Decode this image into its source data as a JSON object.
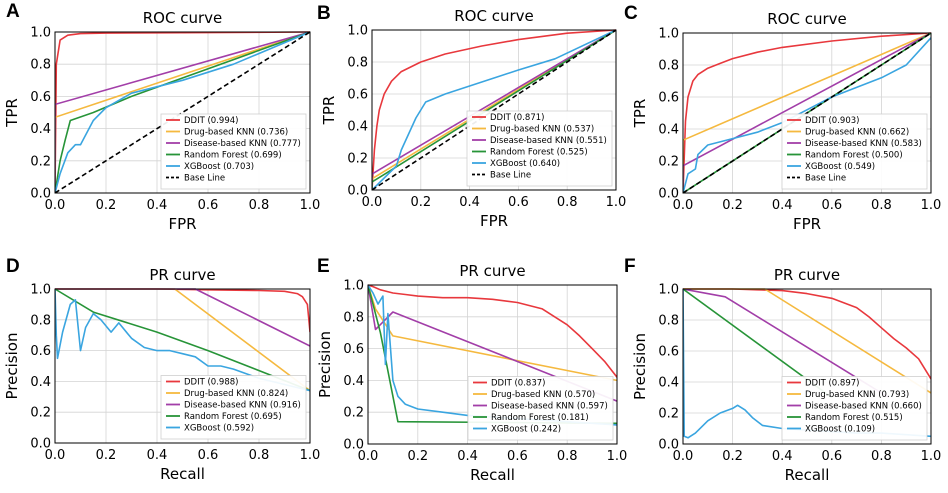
{
  "chart_data": [
    {
      "panel": "A",
      "type": "line",
      "title": "ROC curve",
      "xlabel": "FPR",
      "ylabel": "TPR",
      "xlim": [
        0,
        1
      ],
      "ylim": [
        0,
        1
      ],
      "grid": true,
      "legend_position": "bottom-right",
      "xticks": [
        "0.0",
        "0.2",
        "0.4",
        "0.6",
        "0.8",
        "1.0"
      ],
      "yticks": [
        "0.0",
        "0.2",
        "0.4",
        "0.6",
        "0.8",
        "1.0"
      ],
      "series": [
        {
          "name": "DDIT",
          "legend": "DDIT (0.994)",
          "color": "#e8383d",
          "dash": "",
          "x": [
            0,
            0.005,
            0.02,
            0.05,
            0.1,
            0.2,
            0.4,
            0.7,
            1.0
          ],
          "y": [
            0,
            0.8,
            0.95,
            0.98,
            0.99,
            0.993,
            0.995,
            0.997,
            1.0
          ]
        },
        {
          "name": "Drug-based KNN",
          "legend": "Drug-based KNN (0.736)",
          "color": "#f5b93f",
          "dash": "",
          "x": [
            0,
            0,
            1.0
          ],
          "y": [
            0,
            0.47,
            1.0
          ]
        },
        {
          "name": "Disease-based KNN",
          "legend": "Disease-based KNN (0.777)",
          "color": "#a23ea8",
          "dash": "",
          "x": [
            0,
            0,
            1.0
          ],
          "y": [
            0,
            0.55,
            1.0
          ]
        },
        {
          "name": "Random Forest",
          "legend": "Random Forest (0.699)",
          "color": "#279438",
          "dash": "",
          "x": [
            0,
            0.02,
            0.04,
            0.06,
            0.15,
            0.3,
            1.0
          ],
          "y": [
            0,
            0.2,
            0.33,
            0.45,
            0.5,
            0.6,
            1.0
          ]
        },
        {
          "name": "XGBoost",
          "legend": "XGBoost (0.703)",
          "color": "#3aa5e0",
          "dash": "",
          "x": [
            0,
            0.02,
            0.05,
            0.08,
            0.1,
            0.15,
            0.2,
            0.3,
            0.5,
            0.7,
            1.0
          ],
          "y": [
            0,
            0.12,
            0.25,
            0.3,
            0.3,
            0.45,
            0.53,
            0.62,
            0.7,
            0.8,
            1.0
          ]
        },
        {
          "name": "Base Line",
          "legend": "Base Line",
          "color": "#000000",
          "dash": "5,3",
          "x": [
            0,
            1
          ],
          "y": [
            0,
            1
          ]
        }
      ]
    },
    {
      "panel": "B",
      "type": "line",
      "title": "ROC curve",
      "xlabel": "FPR",
      "ylabel": "TPR",
      "xlim": [
        0,
        1
      ],
      "ylim": [
        0,
        1
      ],
      "grid": true,
      "legend_position": "bottom-right",
      "xticks": [
        "0.0",
        "0.2",
        "0.4",
        "0.6",
        "0.8",
        "1.0"
      ],
      "yticks": [
        "0.0",
        "0.2",
        "0.4",
        "0.6",
        "0.8",
        "1.0"
      ],
      "series": [
        {
          "name": "DDIT",
          "legend": "DDIT (0.871)",
          "color": "#e8383d",
          "dash": "",
          "x": [
            0,
            0.01,
            0.02,
            0.03,
            0.05,
            0.08,
            0.12,
            0.2,
            0.3,
            0.45,
            0.6,
            0.8,
            1.0
          ],
          "y": [
            0,
            0.25,
            0.4,
            0.5,
            0.6,
            0.68,
            0.74,
            0.8,
            0.85,
            0.9,
            0.94,
            0.98,
            1.0
          ]
        },
        {
          "name": "Drug-based KNN",
          "legend": "Drug-based KNN (0.537)",
          "color": "#f5b93f",
          "dash": "",
          "x": [
            0,
            0,
            1.0
          ],
          "y": [
            0,
            0.07,
            1.0
          ]
        },
        {
          "name": "Disease-based KNN",
          "legend": "Disease-based KNN (0.551)",
          "color": "#a23ea8",
          "dash": "",
          "x": [
            0,
            0,
            1.0
          ],
          "y": [
            0,
            0.1,
            1.0
          ]
        },
        {
          "name": "Random Forest",
          "legend": "Random Forest (0.525)",
          "color": "#279438",
          "dash": "",
          "x": [
            0,
            0,
            1.0
          ],
          "y": [
            0,
            0.05,
            1.0
          ]
        },
        {
          "name": "XGBoost",
          "legend": "XGBoost (0.640)",
          "color": "#3aa5e0",
          "dash": "",
          "x": [
            0,
            0.1,
            0.12,
            0.15,
            0.18,
            0.22,
            0.3,
            0.4,
            0.5,
            0.6,
            0.75,
            1.0
          ],
          "y": [
            0,
            0.15,
            0.25,
            0.35,
            0.45,
            0.55,
            0.6,
            0.65,
            0.7,
            0.75,
            0.82,
            1.0
          ]
        },
        {
          "name": "Base Line",
          "legend": "Base Line",
          "color": "#000000",
          "dash": "5,3",
          "x": [
            0,
            1
          ],
          "y": [
            0,
            1
          ]
        }
      ]
    },
    {
      "panel": "C",
      "type": "line",
      "title": "ROC curve",
      "xlabel": "FPR",
      "ylabel": "TPR",
      "xlim": [
        0,
        1
      ],
      "ylim": [
        0,
        1
      ],
      "grid": true,
      "legend_position": "bottom-right",
      "xticks": [
        "0.0",
        "0.2",
        "0.4",
        "0.6",
        "0.8",
        "1.0"
      ],
      "yticks": [
        "0.0",
        "0.2",
        "0.4",
        "0.6",
        "0.8",
        "1.0"
      ],
      "series": [
        {
          "name": "DDIT",
          "legend": "DDIT (0.903)",
          "color": "#e8383d",
          "dash": "",
          "x": [
            0,
            0.01,
            0.02,
            0.04,
            0.06,
            0.1,
            0.15,
            0.2,
            0.3,
            0.4,
            0.6,
            0.8,
            1.0
          ],
          "y": [
            0,
            0.45,
            0.6,
            0.7,
            0.74,
            0.78,
            0.81,
            0.84,
            0.88,
            0.91,
            0.95,
            0.98,
            1.0
          ]
        },
        {
          "name": "Drug-based KNN",
          "legend": "Drug-based KNN (0.662)",
          "color": "#f5b93f",
          "dash": "",
          "x": [
            0,
            0,
            1.0
          ],
          "y": [
            0,
            0.33,
            1.0
          ]
        },
        {
          "name": "Disease-based KNN",
          "legend": "Disease-based KNN (0.583)",
          "color": "#a23ea8",
          "dash": "",
          "x": [
            0,
            0,
            1.0
          ],
          "y": [
            0,
            0.17,
            1.0
          ]
        },
        {
          "name": "Random Forest",
          "legend": "Random Forest (0.500)",
          "color": "#279438",
          "dash": "",
          "x": [
            0,
            1
          ],
          "y": [
            0,
            1
          ]
        },
        {
          "name": "XGBoost",
          "legend": "XGBoost (0.549)",
          "color": "#3aa5e0",
          "dash": "",
          "x": [
            0,
            0.02,
            0.05,
            0.06,
            0.1,
            0.2,
            0.3,
            0.4,
            0.5,
            0.6,
            0.7,
            0.8,
            0.9,
            1.0
          ],
          "y": [
            0,
            0.12,
            0.15,
            0.24,
            0.3,
            0.34,
            0.38,
            0.44,
            0.52,
            0.6,
            0.66,
            0.72,
            0.8,
            0.97
          ]
        },
        {
          "name": "Base Line",
          "legend": "Base Line",
          "color": "#000000",
          "dash": "5,3",
          "x": [
            0,
            1
          ],
          "y": [
            0,
            1
          ]
        }
      ]
    },
    {
      "panel": "D",
      "type": "line",
      "title": "PR curve",
      "xlabel": "Recall",
      "ylabel": "Precision",
      "xlim": [
        0,
        1
      ],
      "ylim": [
        0,
        1
      ],
      "grid": true,
      "legend_position": "bottom-right",
      "xticks": [
        "0.0",
        "0.2",
        "0.4",
        "0.6",
        "0.8",
        "1.0"
      ],
      "yticks": [
        "0.0",
        "0.2",
        "0.4",
        "0.6",
        "0.8",
        "1.0"
      ],
      "series": [
        {
          "name": "DDIT",
          "legend": "DDIT (0.988)",
          "color": "#e8383d",
          "dash": "",
          "x": [
            0,
            0.2,
            0.4,
            0.6,
            0.8,
            0.9,
            0.95,
            0.97,
            0.99,
            1.0
          ],
          "y": [
            1.0,
            1.0,
            1.0,
            0.995,
            0.99,
            0.985,
            0.97,
            0.95,
            0.9,
            0.72
          ]
        },
        {
          "name": "Drug-based KNN",
          "legend": "Drug-based KNN (0.824)",
          "color": "#f5b93f",
          "dash": "",
          "x": [
            0,
            0.47,
            1.0
          ],
          "y": [
            1.0,
            1.0,
            0.34
          ]
        },
        {
          "name": "Disease-based KNN",
          "legend": "Disease-based KNN (0.916)",
          "color": "#a23ea8",
          "dash": "",
          "x": [
            0,
            0.55,
            1.0
          ],
          "y": [
            1.0,
            1.0,
            0.63
          ]
        },
        {
          "name": "Random Forest",
          "legend": "Random Forest (0.695)",
          "color": "#279438",
          "dash": "",
          "x": [
            0,
            0.15,
            0.4,
            0.6,
            1.0
          ],
          "y": [
            1.0,
            0.85,
            0.72,
            0.6,
            0.34
          ]
        },
        {
          "name": "XGBoost",
          "legend": "XGBoost (0.592)",
          "color": "#3aa5e0",
          "dash": "",
          "x": [
            0,
            0.005,
            0.01,
            0.03,
            0.06,
            0.08,
            0.1,
            0.12,
            0.15,
            0.18,
            0.22,
            0.25,
            0.3,
            0.35,
            0.4,
            0.45,
            0.5,
            0.55,
            0.6,
            0.65,
            0.7,
            0.75,
            0.8,
            0.85,
            0.9,
            0.95,
            1.0
          ],
          "y": [
            1.0,
            0.7,
            0.55,
            0.72,
            0.9,
            0.93,
            0.6,
            0.75,
            0.84,
            0.8,
            0.72,
            0.78,
            0.68,
            0.62,
            0.6,
            0.6,
            0.58,
            0.56,
            0.5,
            0.5,
            0.48,
            0.45,
            0.42,
            0.4,
            0.38,
            0.36,
            0.34
          ]
        }
      ]
    },
    {
      "panel": "E",
      "type": "line",
      "title": "PR curve",
      "xlabel": "Recall",
      "ylabel": "Precision",
      "xlim": [
        0,
        1
      ],
      "ylim": [
        0,
        1
      ],
      "grid": true,
      "legend_position": "bottom-right",
      "xticks": [
        "0.0",
        "0.2",
        "0.4",
        "0.6",
        "0.8",
        "1.0"
      ],
      "yticks": [
        "0.0",
        "0.2",
        "0.4",
        "0.6",
        "0.8",
        "1.0"
      ],
      "series": [
        {
          "name": "DDIT",
          "legend": "DDIT (0.837)",
          "color": "#e8383d",
          "dash": "",
          "x": [
            0,
            0.02,
            0.05,
            0.1,
            0.15,
            0.2,
            0.3,
            0.4,
            0.5,
            0.6,
            0.7,
            0.8,
            0.85,
            0.9,
            0.95,
            1.0
          ],
          "y": [
            1.0,
            0.99,
            0.97,
            0.95,
            0.94,
            0.93,
            0.92,
            0.92,
            0.91,
            0.89,
            0.85,
            0.75,
            0.68,
            0.6,
            0.52,
            0.42
          ]
        },
        {
          "name": "Drug-based KNN",
          "legend": "Drug-based KNN (0.570)",
          "color": "#f5b93f",
          "dash": "",
          "x": [
            0,
            0.03,
            0.1,
            1.0
          ],
          "y": [
            1.0,
            0.85,
            0.68,
            0.4
          ]
        },
        {
          "name": "Disease-based KNN",
          "legend": "Disease-based KNN (0.597)",
          "color": "#a23ea8",
          "dash": "",
          "x": [
            0,
            0.03,
            0.1,
            1.0
          ],
          "y": [
            1.0,
            0.72,
            0.83,
            0.27
          ]
        },
        {
          "name": "Random Forest",
          "legend": "Random Forest (0.181)",
          "color": "#279438",
          "dash": "",
          "x": [
            0,
            0.05,
            0.12,
            1.0
          ],
          "y": [
            1.0,
            0.7,
            0.14,
            0.13
          ]
        },
        {
          "name": "XGBoost",
          "legend": "XGBoost (0.242)",
          "color": "#3aa5e0",
          "dash": "",
          "x": [
            0,
            0.02,
            0.04,
            0.06,
            0.07,
            0.08,
            0.1,
            0.12,
            0.15,
            0.2,
            0.3,
            0.4,
            0.5,
            0.6,
            0.7,
            0.8,
            0.9,
            1.0
          ],
          "y": [
            1.0,
            0.95,
            0.88,
            0.93,
            0.5,
            0.82,
            0.4,
            0.3,
            0.25,
            0.22,
            0.2,
            0.18,
            0.17,
            0.16,
            0.15,
            0.14,
            0.13,
            0.12
          ]
        }
      ]
    },
    {
      "panel": "F",
      "type": "line",
      "title": "PR curve",
      "xlabel": "Recall",
      "ylabel": "Precision",
      "xlim": [
        0,
        1
      ],
      "ylim": [
        0,
        1
      ],
      "grid": true,
      "legend_position": "bottom-right",
      "xticks": [
        "0.0",
        "0.2",
        "0.4",
        "0.6",
        "0.8",
        "1.0"
      ],
      "yticks": [
        "0.0",
        "0.2",
        "0.4",
        "0.6",
        "0.8",
        "1.0"
      ],
      "series": [
        {
          "name": "DDIT",
          "legend": "DDIT (0.897)",
          "color": "#e8383d",
          "dash": "",
          "x": [
            0,
            0.1,
            0.2,
            0.3,
            0.4,
            0.5,
            0.6,
            0.7,
            0.75,
            0.8,
            0.85,
            0.9,
            0.95,
            1.0
          ],
          "y": [
            1.0,
            1.0,
            1.0,
            0.995,
            0.99,
            0.97,
            0.94,
            0.88,
            0.82,
            0.75,
            0.68,
            0.62,
            0.55,
            0.42
          ]
        },
        {
          "name": "Drug-based KNN",
          "legend": "Drug-based KNN (0.793)",
          "color": "#f5b93f",
          "dash": "",
          "x": [
            0,
            0.33,
            1.0
          ],
          "y": [
            1.0,
            1.0,
            0.33
          ]
        },
        {
          "name": "Disease-based KNN",
          "legend": "Disease-based KNN (0.660)",
          "color": "#a23ea8",
          "dash": "",
          "x": [
            0,
            0.17,
            0.83
          ],
          "y": [
            1.0,
            0.95,
            0.3
          ]
        },
        {
          "name": "Random Forest",
          "legend": "Random Forest (0.515)",
          "color": "#279438",
          "dash": "",
          "x": [
            0,
            0.6
          ],
          "y": [
            1.0,
            0.3
          ]
        },
        {
          "name": "XGBoost",
          "legend": "XGBoost (0.109)",
          "color": "#3aa5e0",
          "dash": "",
          "x": [
            0,
            0.005,
            0.02,
            0.05,
            0.1,
            0.15,
            0.2,
            0.22,
            0.25,
            0.28,
            0.32,
            0.4,
            0.5,
            0.6,
            0.7,
            0.8,
            0.9,
            1.0
          ],
          "y": [
            1.0,
            0.05,
            0.04,
            0.07,
            0.15,
            0.2,
            0.23,
            0.25,
            0.22,
            0.17,
            0.12,
            0.1,
            0.09,
            0.08,
            0.07,
            0.07,
            0.06,
            0.05
          ]
        }
      ]
    }
  ]
}
